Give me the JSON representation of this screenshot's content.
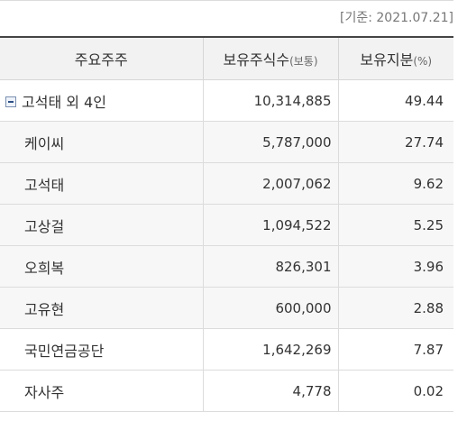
{
  "reference_date": "[기준: 2021.07.21]",
  "table": {
    "headers": {
      "holder": "주요주주",
      "shares": "보유주식수",
      "shares_unit": "(보통)",
      "stake": "보유지분",
      "stake_unit": "(%)"
    },
    "group": {
      "name": "고석태 외 4인",
      "shares": "10,314,885",
      "stake": "49.44",
      "toggle_icon": "collapse-minus-icon"
    },
    "children": [
      {
        "name": "케이씨",
        "shares": "5,787,000",
        "stake": "27.74"
      },
      {
        "name": "고석태",
        "shares": "2,007,062",
        "stake": "9.62"
      },
      {
        "name": "고상걸",
        "shares": "1,094,522",
        "stake": "5.25"
      },
      {
        "name": "오희복",
        "shares": "826,301",
        "stake": "3.96"
      },
      {
        "name": "고유현",
        "shares": "600,000",
        "stake": "2.88"
      }
    ],
    "others": [
      {
        "name": "국민연금공단",
        "shares": "1,642,269",
        "stake": "7.87"
      },
      {
        "name": "자사주",
        "shares": "4,778",
        "stake": "0.02"
      }
    ]
  },
  "colors": {
    "header_bg": "#f2f2f2",
    "header_top_border": "#444444",
    "child_row_bg": "#f7f7f7",
    "grid_line": "#dcdcdc",
    "icon_accent": "#2b4f86"
  }
}
